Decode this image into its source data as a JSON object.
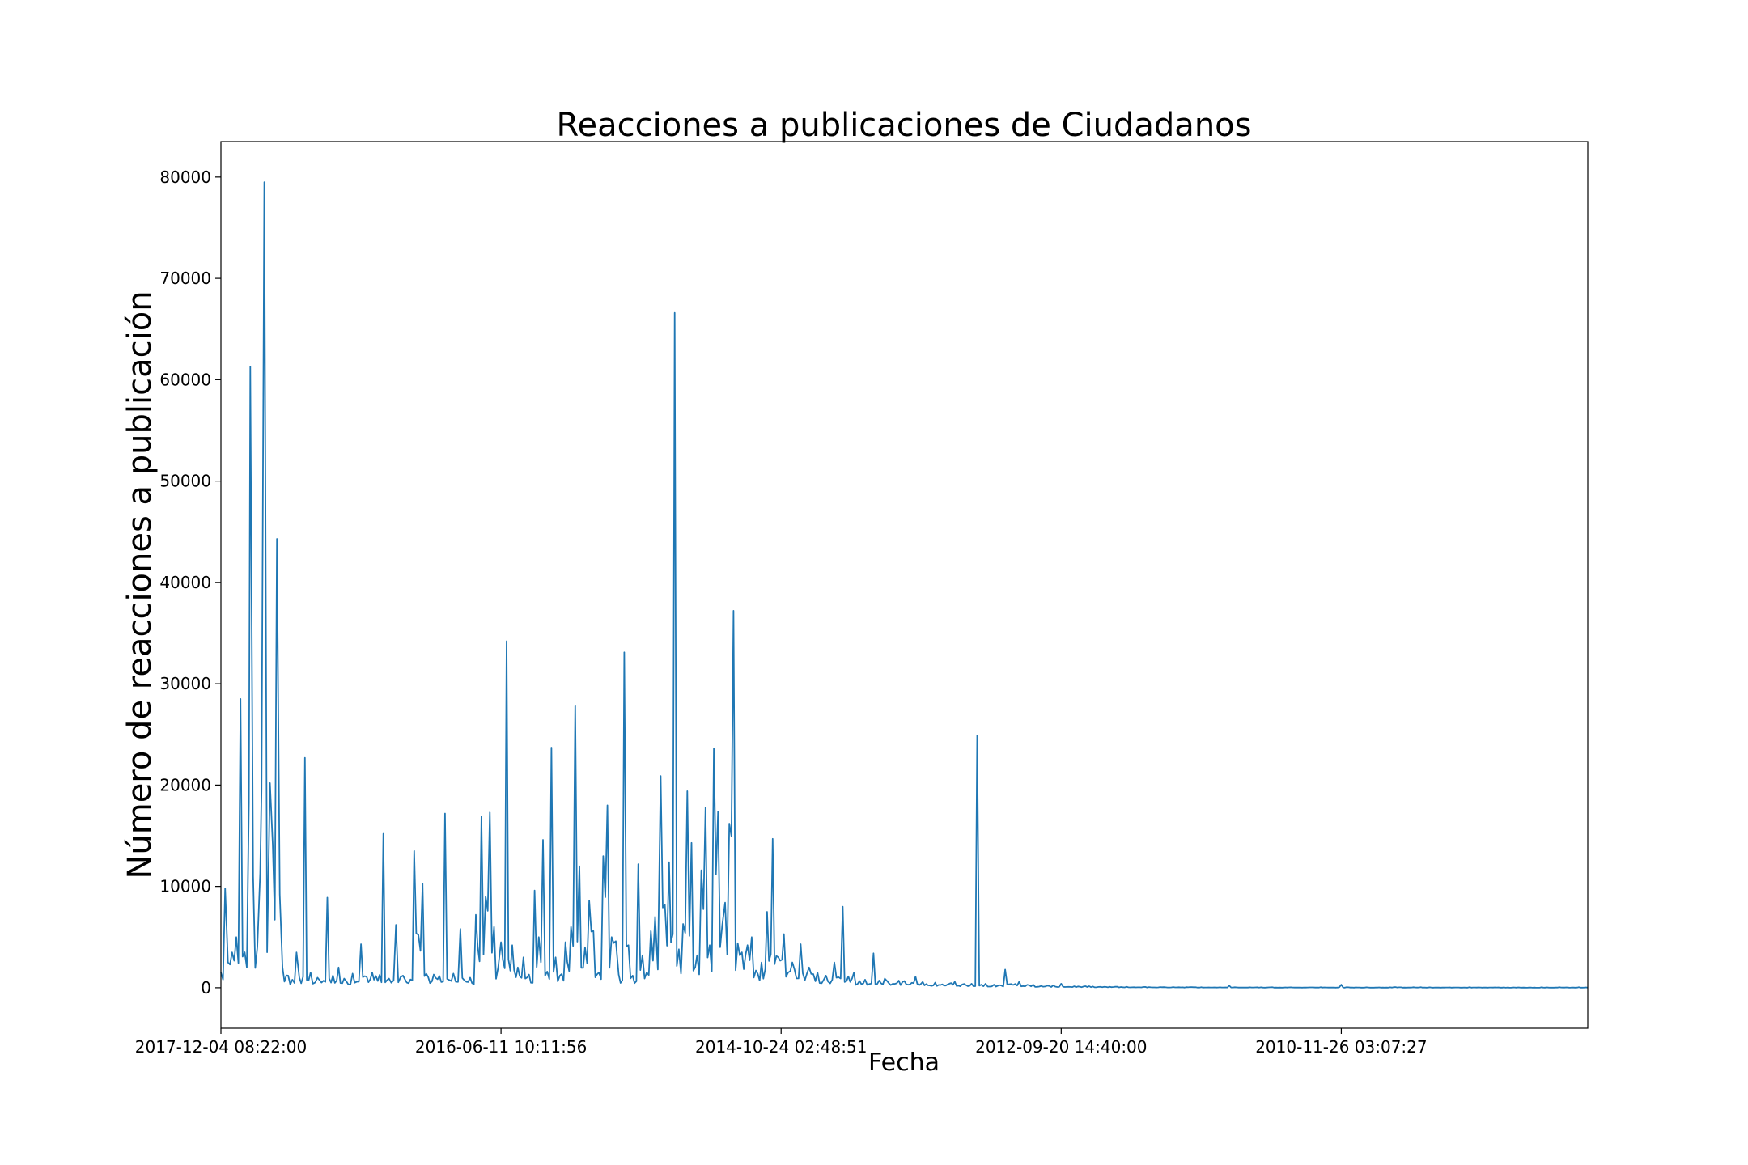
{
  "chart_data": {
    "type": "line",
    "title": "Reacciones a publicaciones de Ciudadanos",
    "xlabel": "Fecha",
    "ylabel": "Número de reacciones a publicación",
    "x_order": "newest-to-oldest",
    "x_tick_labels": [
      "2017-12-04 08:22:00",
      "2016-06-11 10:11:56",
      "2014-10-24 02:48:51",
      "2012-09-20 14:40:00",
      "2010-11-26 03:07:27"
    ],
    "x_tick_positions": [
      0,
      1000,
      2000,
      3000,
      4000
    ],
    "xlim": [
      0,
      4880
    ],
    "ylim": [
      -4000,
      83500
    ],
    "y_ticks": [
      0,
      10000,
      20000,
      30000,
      40000,
      50000,
      60000,
      70000,
      80000
    ],
    "line_color": "#1f77b4",
    "grid": false,
    "legend": "none",
    "series": [
      {
        "x": [
          0,
          15,
          25,
          40,
          55,
          70,
          85,
          100,
          105,
          115,
          130,
          140,
          145,
          155,
          165,
          175,
          185,
          200,
          210,
          220,
          240,
          255,
          270,
          280,
          300,
          320,
          345,
          380,
          400,
          420,
          440,
          470,
          500,
          540,
          580,
          600,
          625,
          650,
          690,
          720,
          760,
          800,
          830,
          855,
          890,
          910,
          930,
          945,
          960,
          975,
          990,
          1000,
          1020,
          1040,
          1060,
          1080,
          1100,
          1120,
          1135,
          1150,
          1165,
          1180,
          1195,
          1210,
          1230,
          1250,
          1265,
          1280,
          1300,
          1315,
          1330,
          1350,
          1365,
          1380,
          1395,
          1410,
          1420,
          1440,
          1455,
          1470,
          1490,
          1505,
          1520,
          1535,
          1550,
          1560,
          1570,
          1585,
          1600,
          1620,
          1635,
          1650,
          1665,
          1680,
          1700,
          1715,
          1730,
          1745,
          1760,
          1775,
          1790,
          1800,
          1815,
          1830,
          1845,
          1860,
          1880,
          1895,
          1910,
          1930,
          1950,
          1970,
          1990,
          2010,
          2040,
          2070,
          2100,
          2130,
          2160,
          2190,
          2220,
          2260,
          2300,
          2330,
          2370,
          2420,
          2480,
          2550,
          2620,
          2680,
          2700,
          2730,
          2760,
          2800,
          2850,
          2900,
          2950,
          3000,
          3100,
          3200,
          3300,
          3400,
          3500,
          3600,
          3700,
          3800,
          3900,
          4000,
          4200,
          4400,
          4600,
          4880
        ],
        "y": [
          1500,
          9800,
          2500,
          3500,
          5000,
          28500,
          3500,
          18300,
          61300,
          11000,
          4000,
          11300,
          19500,
          79500,
          3500,
          20200,
          14200,
          44300,
          9200,
          2000,
          1200,
          800,
          3500,
          1000,
          22700,
          1500,
          1000,
          8900,
          1200,
          2000,
          900,
          1400,
          4300,
          1500,
          15200,
          900,
          6200,
          1200,
          13500,
          10300,
          1300,
          17200,
          1400,
          5800,
          1000,
          7200,
          16900,
          9000,
          17300,
          6000,
          2000,
          4500,
          34200,
          4200,
          2000,
          3000,
          1300,
          9600,
          5000,
          14600,
          1600,
          23700,
          3000,
          1200,
          4500,
          6000,
          27800,
          12000,
          4000,
          8600,
          5600,
          1500,
          13000,
          18000,
          5000,
          4600,
          1300,
          33100,
          4200,
          1200,
          12200,
          3200,
          1500,
          5600,
          7000,
          1800,
          20900,
          8200,
          12400,
          66600,
          3800,
          6300,
          19400,
          14300,
          3200,
          11600,
          17800,
          4200,
          23600,
          17400,
          6200,
          8400,
          16200,
          37200,
          4400,
          3500,
          4200,
          5000,
          1700,
          2500,
          7500,
          14700,
          3000,
          5300,
          2500,
          4300,
          2000,
          1500,
          1200,
          2500,
          8000,
          1500,
          800,
          3400,
          900,
          700,
          1100,
          500,
          600,
          400,
          24900,
          400,
          300,
          1800,
          600,
          300,
          200,
          400,
          150,
          100,
          80,
          60,
          50,
          200,
          40,
          30,
          30,
          300,
          20,
          15,
          10,
          5
        ]
      }
    ]
  }
}
